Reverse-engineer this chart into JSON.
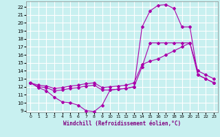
{
  "xlabel": "Windchill (Refroidissement éolien,°C)",
  "bg_color": "#c8f0f0",
  "grid_color": "#ffffff",
  "line_color": "#aa00aa",
  "xlim": [
    -0.5,
    23.5
  ],
  "ylim": [
    8.8,
    22.7
  ],
  "xticks": [
    0,
    1,
    2,
    3,
    4,
    5,
    6,
    7,
    8,
    9,
    10,
    11,
    12,
    13,
    14,
    15,
    16,
    17,
    18,
    19,
    20,
    21,
    22,
    23
  ],
  "yticks": [
    9,
    10,
    11,
    12,
    13,
    14,
    15,
    16,
    17,
    18,
    19,
    20,
    21,
    22
  ],
  "line1_x": [
    0,
    1,
    2,
    3,
    4,
    5,
    6,
    7,
    8,
    9,
    10,
    11,
    12,
    13,
    14,
    15,
    16,
    17,
    18,
    19,
    20,
    21,
    22,
    23
  ],
  "line1_y": [
    12.5,
    12.0,
    11.9,
    11.5,
    11.6,
    11.8,
    11.9,
    12.1,
    12.2,
    11.6,
    11.6,
    11.7,
    11.8,
    12.0,
    19.5,
    21.5,
    22.2,
    22.3,
    21.8,
    19.5,
    19.5,
    13.5,
    13.0,
    12.5
  ],
  "line2_x": [
    0,
    1,
    2,
    3,
    4,
    5,
    6,
    7,
    8,
    9,
    10,
    11,
    12,
    13,
    14,
    15,
    16,
    17,
    18,
    19,
    20,
    21,
    22,
    23
  ],
  "line2_y": [
    12.5,
    11.9,
    11.5,
    10.7,
    10.1,
    10.0,
    9.7,
    9.0,
    8.9,
    9.7,
    11.6,
    11.7,
    11.8,
    12.0,
    14.5,
    17.5,
    17.5,
    17.5,
    17.5,
    17.5,
    17.5,
    14.0,
    13.5,
    13.0
  ],
  "line3_x": [
    0,
    1,
    2,
    3,
    4,
    5,
    6,
    7,
    8,
    9,
    10,
    11,
    12,
    13,
    14,
    15,
    16,
    17,
    18,
    19,
    20,
    21,
    22,
    23
  ],
  "line3_y": [
    12.5,
    12.2,
    12.1,
    11.8,
    11.9,
    12.1,
    12.2,
    12.4,
    12.5,
    11.9,
    12.0,
    12.1,
    12.2,
    12.5,
    14.8,
    15.2,
    15.5,
    16.0,
    16.5,
    17.0,
    17.5,
    13.5,
    13.0,
    12.5
  ]
}
